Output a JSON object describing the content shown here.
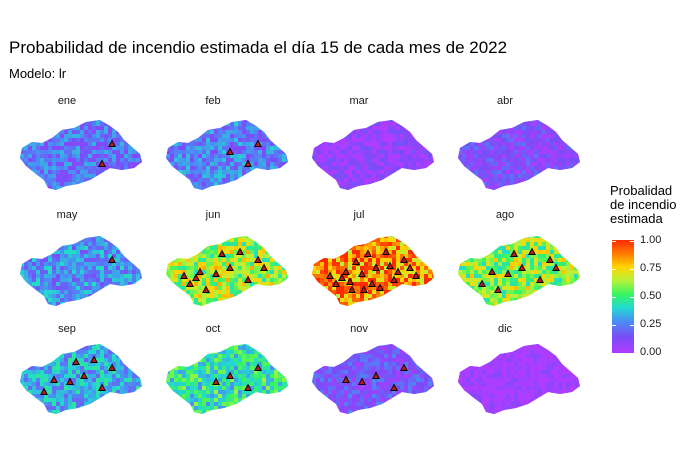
{
  "header": {
    "title": "Probabilidad de incendio estimada el día 15 de cada mes de 2022",
    "subtitle": "Modelo: lr"
  },
  "panels": [
    {
      "month": "ene",
      "level": 0.22,
      "fires": 2
    },
    {
      "month": "feb",
      "level": 0.25,
      "fires": 3
    },
    {
      "month": "mar",
      "level": 0.06,
      "fires": 0
    },
    {
      "month": "abr",
      "level": 0.12,
      "fires": 0
    },
    {
      "month": "may",
      "level": 0.28,
      "fires": 1
    },
    {
      "month": "jun",
      "level": 0.62,
      "fires": 12
    },
    {
      "month": "jul",
      "level": 0.88,
      "fires": 20
    },
    {
      "month": "ago",
      "level": 0.6,
      "fires": 10
    },
    {
      "month": "sep",
      "level": 0.32,
      "fires": 8
    },
    {
      "month": "oct",
      "level": 0.45,
      "fires": 4
    },
    {
      "month": "nov",
      "level": 0.15,
      "fires": 5
    },
    {
      "month": "dic",
      "level": 0.02,
      "fires": 0
    }
  ],
  "legend": {
    "title": "Probalidad de incendio estimada",
    "ticks": [
      "1.00",
      "0.75",
      "0.50",
      "0.25",
      "0.00"
    ],
    "colors": [
      "#ff2a00",
      "#ffd500",
      "#38f560",
      "#4a8df5",
      "#b03cff"
    ]
  }
}
